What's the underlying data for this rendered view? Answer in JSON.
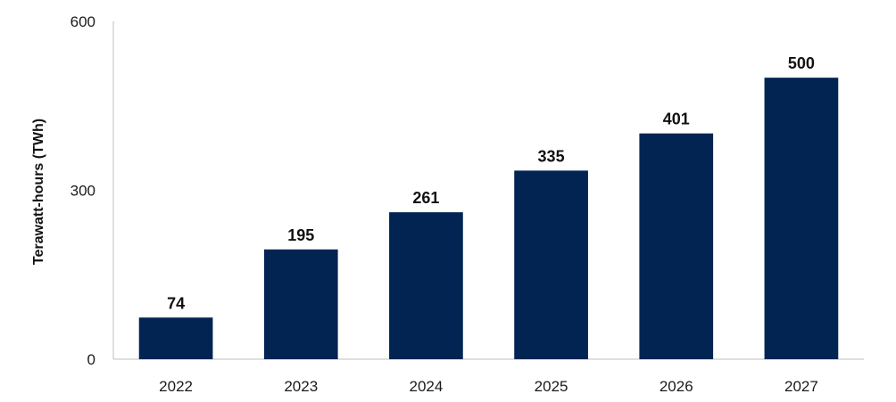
{
  "chart_data": {
    "type": "bar",
    "title": "",
    "xlabel": "",
    "ylabel": "Terawatt-hours (TWh)",
    "categories": [
      "2022",
      "2023",
      "2024",
      "2025",
      "2026",
      "2027"
    ],
    "values": [
      74,
      195,
      261,
      335,
      401,
      500
    ],
    "ylim": [
      0,
      600
    ],
    "yticks": [
      "0",
      "300",
      "600"
    ],
    "grid": false,
    "legend": "none",
    "bar_color": "#012452",
    "data_labels": [
      "74",
      "195",
      "261",
      "335",
      "401",
      "500"
    ]
  }
}
